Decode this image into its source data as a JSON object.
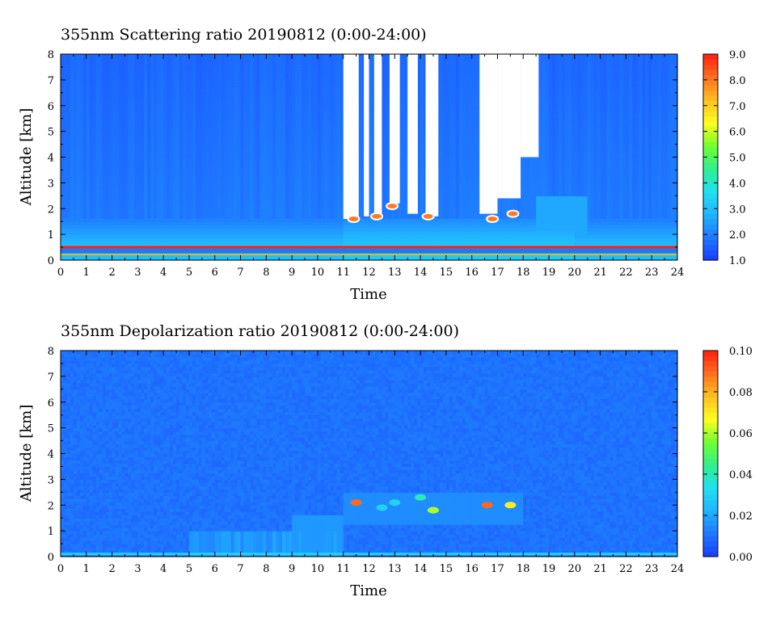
{
  "chart_data": [
    {
      "type": "heatmap",
      "title": "355nm Scattering ratio  20190812 (0:00-24:00)",
      "xlabel": "Time",
      "ylabel": "Altitude [km]",
      "xlim": [
        0,
        24
      ],
      "ylim": [
        0,
        8
      ],
      "x_ticks": [
        "0",
        "1",
        "2",
        "3",
        "4",
        "5",
        "6",
        "7",
        "8",
        "9",
        "10",
        "11",
        "12",
        "13",
        "14",
        "15",
        "16",
        "17",
        "18",
        "19",
        "20",
        "21",
        "22",
        "23",
        "24"
      ],
      "y_ticks": [
        "0",
        "1",
        "2",
        "3",
        "4",
        "5",
        "6",
        "7",
        "8"
      ],
      "colorbar": {
        "min": 1.0,
        "max": 9.0,
        "ticks": [
          "1.0",
          "2.0",
          "3.0",
          "4.0",
          "5.0",
          "6.0",
          "7.0",
          "8.0",
          "9.0"
        ]
      },
      "colorscale": [
        "#1a3cff",
        "#1e78ff",
        "#20b4ff",
        "#20e0f0",
        "#30f090",
        "#70ff30",
        "#ffff20",
        "#ffc020",
        "#ff7020",
        "#ff2010"
      ],
      "background_value": 2.0,
      "surface_band": {
        "altitude": 0.5,
        "value": 9.0
      },
      "boundary_layer": {
        "altitude_top": 1.0,
        "value": 3.0,
        "peak_window": [
          11,
          20
        ]
      },
      "no_data_color": "#ffffff",
      "no_data_columns": [
        {
          "start": 11.0,
          "end": 11.6,
          "bottom": 1.6
        },
        {
          "start": 11.8,
          "end": 12.0,
          "bottom": 1.7
        },
        {
          "start": 12.2,
          "end": 12.5,
          "bottom": 1.6
        },
        {
          "start": 12.8,
          "end": 13.2,
          "bottom": 2.2
        },
        {
          "start": 13.5,
          "end": 13.9,
          "bottom": 1.8
        },
        {
          "start": 14.2,
          "end": 14.7,
          "bottom": 1.7
        },
        {
          "start": 16.3,
          "end": 17.0,
          "bottom": 1.8
        },
        {
          "start": 17.0,
          "end": 17.9,
          "bottom": 2.4
        },
        {
          "start": 17.9,
          "end": 18.6,
          "bottom": 4.0
        }
      ],
      "cloud_features": [
        {
          "time": 11.4,
          "altitude": 1.6,
          "value": 8.0
        },
        {
          "time": 12.3,
          "altitude": 1.7,
          "value": 8.0
        },
        {
          "time": 12.9,
          "altitude": 2.1,
          "value": 8.0
        },
        {
          "time": 14.3,
          "altitude": 1.7,
          "value": 8.0
        },
        {
          "time": 16.8,
          "altitude": 1.6,
          "value": 8.0
        },
        {
          "time": 17.6,
          "altitude": 1.8,
          "value": 8.0
        }
      ]
    },
    {
      "type": "heatmap",
      "title": "355nm Depolarization ratio  20190812 (0:00-24:00)",
      "xlabel": "Time",
      "ylabel": "Altitude [km]",
      "xlim": [
        0,
        24
      ],
      "ylim": [
        0,
        8
      ],
      "x_ticks": [
        "0",
        "1",
        "2",
        "3",
        "4",
        "5",
        "6",
        "7",
        "8",
        "9",
        "10",
        "11",
        "12",
        "13",
        "14",
        "15",
        "16",
        "17",
        "18",
        "19",
        "20",
        "21",
        "22",
        "23",
        "24"
      ],
      "y_ticks": [
        "0",
        "1",
        "2",
        "3",
        "4",
        "5",
        "6",
        "7",
        "8"
      ],
      "colorbar": {
        "min": 0.0,
        "max": 0.1,
        "ticks": [
          "0.00",
          "0.02",
          "0.04",
          "0.06",
          "0.08",
          "0.10"
        ]
      },
      "colorscale": [
        "#1a3cff",
        "#1e78ff",
        "#20b4ff",
        "#20e0f0",
        "#30f090",
        "#70ff30",
        "#ffff20",
        "#ffc020",
        "#ff7020",
        "#ff2010"
      ],
      "background_value": 0.01,
      "surface_band": {
        "altitude": 0.1,
        "value": 0.03
      },
      "aerosol_layer": {
        "start": 5.0,
        "end": 11.0,
        "altitude_top": 1.0,
        "value": 0.02
      },
      "cloud_features": [
        {
          "time": 11.5,
          "altitude": 2.1,
          "value": 0.09
        },
        {
          "time": 12.5,
          "altitude": 1.9,
          "value": 0.03
        },
        {
          "time": 13.0,
          "altitude": 2.1,
          "value": 0.03
        },
        {
          "time": 14.0,
          "altitude": 2.3,
          "value": 0.04
        },
        {
          "time": 14.5,
          "altitude": 1.8,
          "value": 0.06
        },
        {
          "time": 16.6,
          "altitude": 2.0,
          "value": 0.09
        },
        {
          "time": 17.5,
          "altitude": 2.0,
          "value": 0.07
        }
      ]
    }
  ]
}
